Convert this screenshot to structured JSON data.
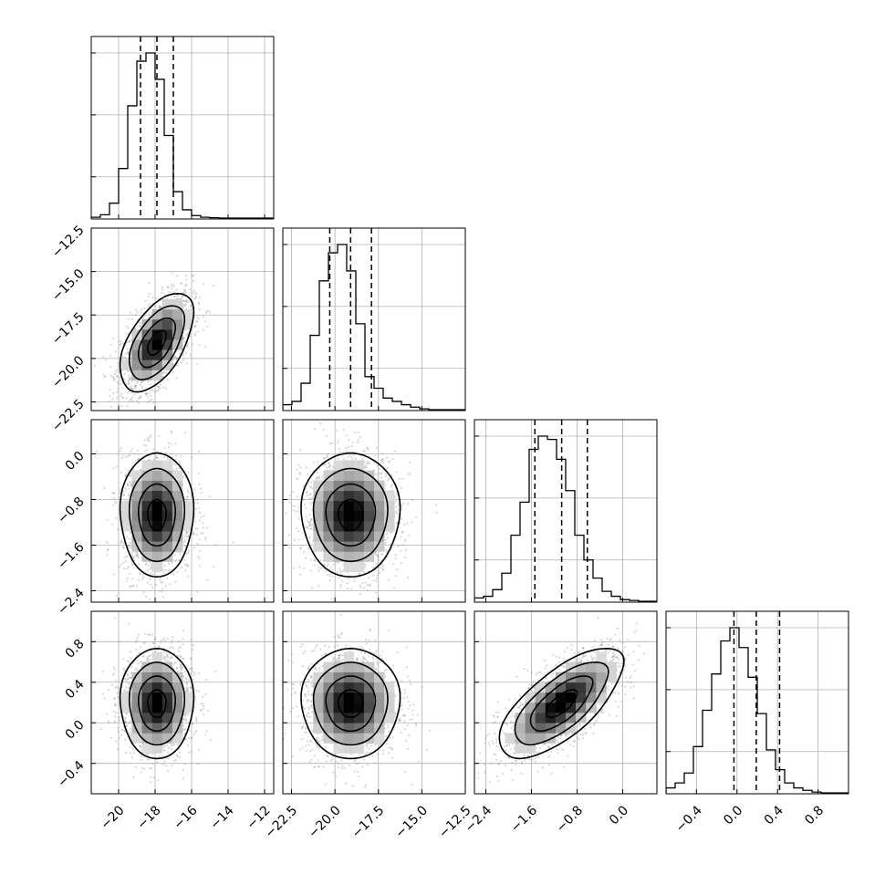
{
  "chart_data": {
    "type": "corner",
    "grid": true,
    "variables": [
      {
        "range": [
          -21.5,
          -11.5
        ],
        "ticks": [
          -20,
          -18,
          -16,
          -14,
          -12
        ],
        "tick_labels": [
          "−20",
          "−18",
          "−16",
          "−14",
          "−12"
        ],
        "quantiles": [
          -18.8,
          -17.9,
          -17.0
        ],
        "hist_bins": [
          -21.5,
          -11.5,
          20
        ],
        "hist_counts": [
          0.005,
          0.02,
          0.09,
          0.3,
          0.68,
          0.95,
          1.0,
          0.84,
          0.5,
          0.16,
          0.05,
          0.015,
          0.005,
          0.002,
          0,
          0,
          0,
          0,
          0,
          0
        ]
      },
      {
        "range": [
          -23.0,
          -12.5
        ],
        "ticks": [
          -22.5,
          -20.0,
          -17.5,
          -15.0,
          -12.5
        ],
        "tick_labels": [
          "−22.5",
          "−20.0",
          "−17.5",
          "−15.0",
          "−12.5"
        ],
        "quantiles": [
          -20.3,
          -19.1,
          -17.9
        ],
        "hist_bins": [
          -23.0,
          -12.5,
          20
        ],
        "hist_counts": [
          0.03,
          0.05,
          0.16,
          0.45,
          0.78,
          0.95,
          1.0,
          0.84,
          0.52,
          0.2,
          0.13,
          0.07,
          0.05,
          0.03,
          0.015,
          0.005,
          0,
          0,
          0,
          0
        ]
      },
      {
        "range": [
          -2.6,
          0.6
        ],
        "ticks": [
          -2.4,
          -1.6,
          -0.8,
          0.0
        ],
        "tick_labels": [
          "−2.4",
          "−1.6",
          "−0.8",
          "0.0"
        ],
        "quantiles": [
          -1.54,
          -1.07,
          -0.62
        ],
        "hist_bins": [
          -2.6,
          0.6,
          20
        ],
        "hist_counts": [
          0.02,
          0.03,
          0.07,
          0.17,
          0.4,
          0.6,
          0.92,
          1.0,
          0.98,
          0.86,
          0.67,
          0.4,
          0.25,
          0.14,
          0.06,
          0.03,
          0.01,
          0.005,
          0,
          0
        ]
      },
      {
        "range": [
          -0.7,
          1.1
        ],
        "ticks": [
          -0.4,
          0.0,
          0.4,
          0.8
        ],
        "tick_labels": [
          "−0.4",
          "0.0",
          "0.4",
          "0.8"
        ],
        "quantiles": [
          -0.03,
          0.19,
          0.42
        ],
        "hist_bins": [
          -0.7,
          1.1,
          20
        ],
        "hist_counts": [
          0.03,
          0.06,
          0.12,
          0.28,
          0.5,
          0.72,
          0.92,
          1.0,
          0.88,
          0.7,
          0.48,
          0.26,
          0.14,
          0.06,
          0.03,
          0.015,
          0.005,
          0,
          0,
          0
        ]
      }
    ],
    "pairs": [
      {
        "x": 0,
        "y": 1,
        "center": [
          -17.9,
          -19.1
        ],
        "sigma": [
          0.85,
          1.2
        ],
        "rho": 0.55
      },
      {
        "x": 0,
        "y": 2,
        "center": [
          -17.9,
          -1.07
        ],
        "sigma": [
          0.85,
          0.46
        ],
        "rho": 0.0
      },
      {
        "x": 1,
        "y": 2,
        "center": [
          -19.1,
          -1.07
        ],
        "sigma": [
          1.2,
          0.46
        ],
        "rho": 0.0
      },
      {
        "x": 0,
        "y": 3,
        "center": [
          -17.9,
          0.19
        ],
        "sigma": [
          0.85,
          0.23
        ],
        "rho": 0.0
      },
      {
        "x": 1,
        "y": 3,
        "center": [
          -19.1,
          0.19
        ],
        "sigma": [
          1.2,
          0.23
        ],
        "rho": 0.0
      },
      {
        "x": 2,
        "y": 3,
        "center": [
          -1.07,
          0.19
        ],
        "sigma": [
          0.46,
          0.23
        ],
        "rho": 0.7
      }
    ],
    "contour_levels_sigma": [
      0.5,
      1.0,
      1.5,
      2.0
    ],
    "colors": {
      "line": "#000000",
      "grid": "#b0b0b0",
      "density_dark": "#000000",
      "scatter": "#7f7f7f"
    }
  }
}
